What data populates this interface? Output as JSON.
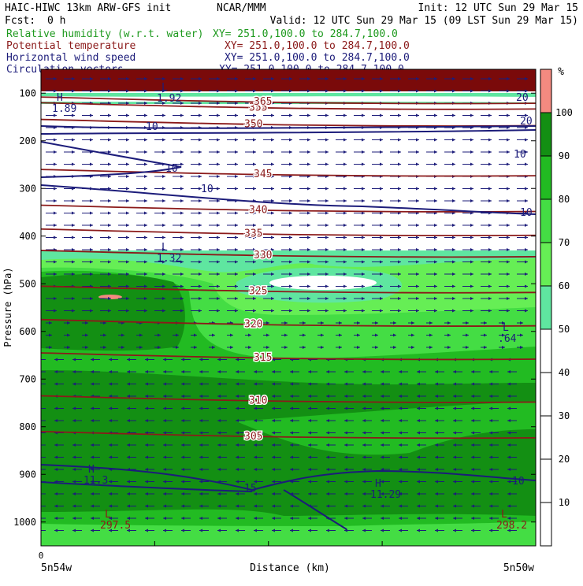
{
  "header": {
    "title": "HAIC-HIWC 13km ARW-GFS init",
    "center": "NCAR/MMM",
    "init": "Init: 12 UTC Sun 29 Mar 15",
    "fcst_label": "Fcst:",
    "fcst_value": "0 h",
    "valid": "Valid: 12 UTC Sun 29 Mar 15 (09 LST Sun 29 Mar 15)"
  },
  "fields": [
    {
      "name": "Relative humidity (w.r.t. water)",
      "xy": "XY= 251.0,100.0 to 284.7,100.0",
      "color": "#1f9a1f"
    },
    {
      "name": "Potential temperature",
      "xy": "XY= 251.0,100.0 to 284.7,100.0",
      "color": "#8b1a1a"
    },
    {
      "name": "Horizontal wind speed",
      "xy": "XY= 251.0,100.0 to 284.7,100.0",
      "color": "#1c1c7a"
    },
    {
      "name": "Circulation vectors",
      "xy": "XY= 251.0,100.0 to 284.7,100.0",
      "color": "#1c1c7a"
    }
  ],
  "colorbar": {
    "unit": "%",
    "ticks": [
      "10",
      "20",
      "30",
      "40",
      "50",
      "60",
      "70",
      "80",
      "90",
      "100"
    ],
    "bands": [
      {
        "from": 0,
        "to": 50,
        "color": "#ffffff"
      },
      {
        "from": 50,
        "to": 60,
        "color": "#5fe6a0"
      },
      {
        "from": 60,
        "to": 70,
        "color": "#66ee55"
      },
      {
        "from": 70,
        "to": 80,
        "color": "#44dd44"
      },
      {
        "from": 80,
        "to": 90,
        "color": "#22bb22"
      },
      {
        "from": 90,
        "to": 100,
        "color": "#138f13"
      },
      {
        "from": 100,
        "to": 110,
        "color": "#f48a80"
      }
    ]
  },
  "chart_data": {
    "type": "heatmap",
    "xlabel": "Distance (km)",
    "ylabel": "Pressure (hPa)",
    "ylim": [
      1050,
      50
    ],
    "y_ticks": [
      100,
      200,
      300,
      400,
      500,
      600,
      700,
      800,
      900,
      1000
    ],
    "x_left_value": "0",
    "x_left_label": "5n54w",
    "x_right_label": "5n50w",
    "theta_contours": [
      {
        "level": "305",
        "p": 820
      },
      {
        "level": "310",
        "p": 745
      },
      {
        "level": "315",
        "p": 655
      },
      {
        "level": "320",
        "p": 585
      },
      {
        "level": "325",
        "p": 515
      },
      {
        "level": "330",
        "p": 440
      },
      {
        "level": "335",
        "p": 395
      },
      {
        "level": "340",
        "p": 345
      },
      {
        "level": "345",
        "p": 270
      },
      {
        "level": "350",
        "p": 165
      },
      {
        "level": "355",
        "p": 130
      },
      {
        "level": "365",
        "p": 118
      }
    ],
    "wind_labels": [
      "10",
      "10",
      "10",
      "10",
      "15",
      "20",
      "20",
      "10",
      "10"
    ],
    "extrema": [
      {
        "sym": "L",
        "value": "1.92"
      },
      {
        "sym": "H",
        "value": "1.89"
      },
      {
        "sym": "L",
        "value": "1.32"
      },
      {
        "sym": "L",
        "value": ".64"
      },
      {
        "sym": "H",
        "value": "11.3"
      },
      {
        "sym": "H",
        "value": "11.29"
      },
      {
        "sym": "L",
        "value": "297.5"
      },
      {
        "sym": "L",
        "value": "298.2"
      }
    ]
  }
}
